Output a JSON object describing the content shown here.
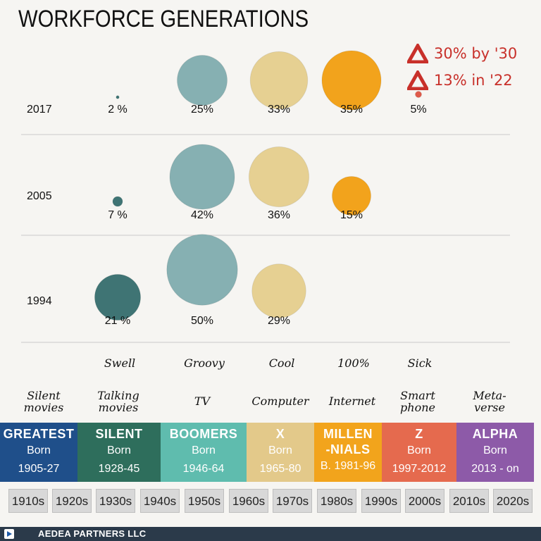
{
  "title": "WORKFORCE GENERATIONS",
  "notes": [
    {
      "text": "30% by '30",
      "icon": "warning-triangle-icon"
    },
    {
      "text": "13% in '22",
      "icon": "warning-triangle-icon"
    }
  ],
  "media": [
    "Silent movies",
    "Talking movies",
    "TV",
    "Computer",
    "Internet",
    "Smart phone",
    "Meta-verse"
  ],
  "slang": [
    "Swell",
    "Groovy",
    "Cool",
    "100%",
    "Sick"
  ],
  "generations": [
    {
      "name": "GREATEST",
      "born_label": "Born",
      "years": "1905-27",
      "color": "#1f4f8a"
    },
    {
      "name": "SILENT",
      "born_label": "Born",
      "years": "1928-45",
      "color": "#2e6e5c"
    },
    {
      "name": "BOOMERS",
      "born_label": "Born",
      "years": "1946-64",
      "color": "#5fbcae"
    },
    {
      "name": "X",
      "born_label": "Born",
      "years": "1965-80",
      "color": "#e3c98a"
    },
    {
      "name": "MILLEN-NIALS",
      "born_label": "",
      "years": "B. 1981-96",
      "color": "#f2a41c"
    },
    {
      "name": "Z",
      "born_label": "Born",
      "years": "1997-2012",
      "color": "#e56a4e"
    },
    {
      "name": "ALPHA",
      "born_label": "Born",
      "years": "2013 - on",
      "color": "#8d5aa8"
    }
  ],
  "decades": [
    "1910s",
    "1920s",
    "1930s",
    "1940s",
    "1950s",
    "1960s",
    "1970s",
    "1980s",
    "1990s",
    "2000s",
    "2010s",
    "2020s"
  ],
  "footer": "AEDEA PARTNERS LLC",
  "chart_data": {
    "type": "bubble",
    "title": "WORKFORCE GENERATIONS",
    "categories": [
      "Silent",
      "Boomers",
      "X",
      "Millennials",
      "Z"
    ],
    "rows": [
      {
        "year": "2017",
        "values": [
          2,
          25,
          33,
          35,
          5
        ],
        "labels": [
          "2 %",
          "25%",
          "33%",
          "35%",
          "5%"
        ]
      },
      {
        "year": "2005",
        "values": [
          7,
          42,
          36,
          15,
          null
        ],
        "labels": [
          "7 %",
          "42%",
          "36%",
          "15%",
          ""
        ]
      },
      {
        "year": "1994",
        "values": [
          21,
          50,
          29,
          null,
          null
        ],
        "labels": [
          "21 %",
          "50%",
          "29%",
          "",
          ""
        ]
      }
    ],
    "colors": [
      "#3f7474",
      "#86b0b2",
      "#e6d092",
      "#f2a31c",
      "#df5a4a"
    ]
  }
}
